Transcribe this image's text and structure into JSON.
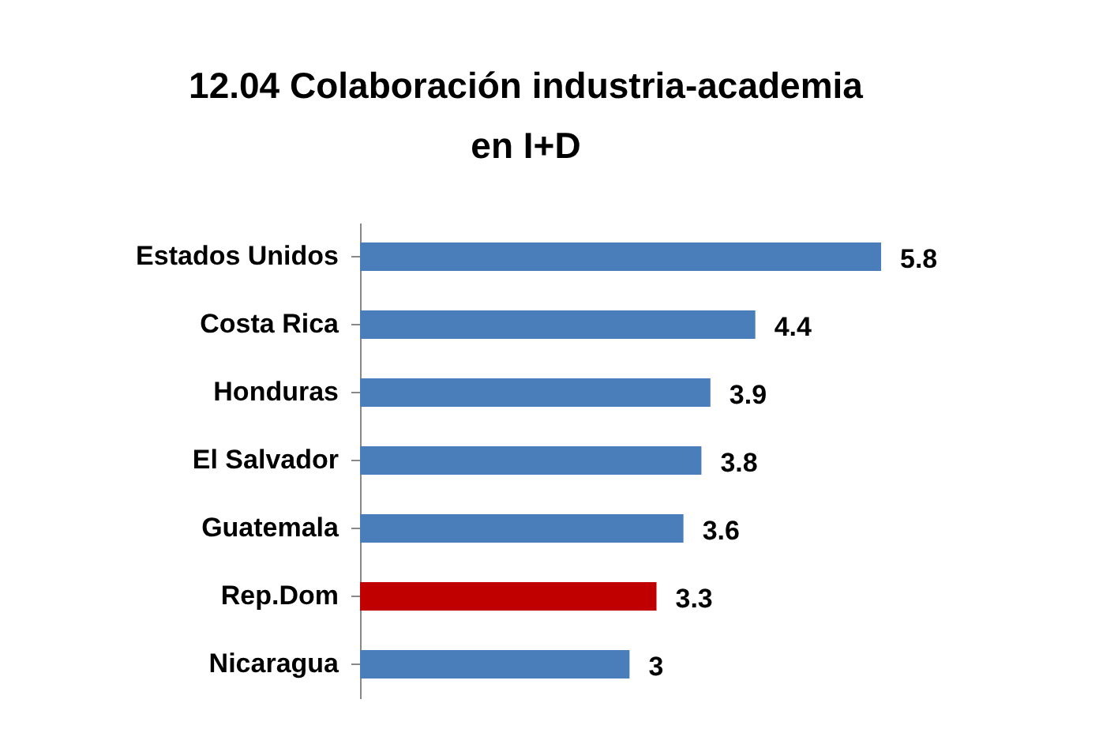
{
  "chart_data": {
    "type": "bar",
    "orientation": "horizontal",
    "title": "12.04 Colaboración industria-academia en I+D",
    "categories": [
      "Estados Unidos",
      "Costa Rica",
      "Honduras",
      "El Salvador",
      "Guatemala",
      "Rep.Dom",
      "Nicaragua"
    ],
    "values": [
      5.8,
      4.4,
      3.9,
      3.8,
      3.6,
      3.3,
      3
    ],
    "colors": [
      "#4a7ebb",
      "#4a7ebb",
      "#4a7ebb",
      "#4a7ebb",
      "#4a7ebb",
      "#c00000",
      "#4a7ebb"
    ],
    "data_labels": true
  }
}
